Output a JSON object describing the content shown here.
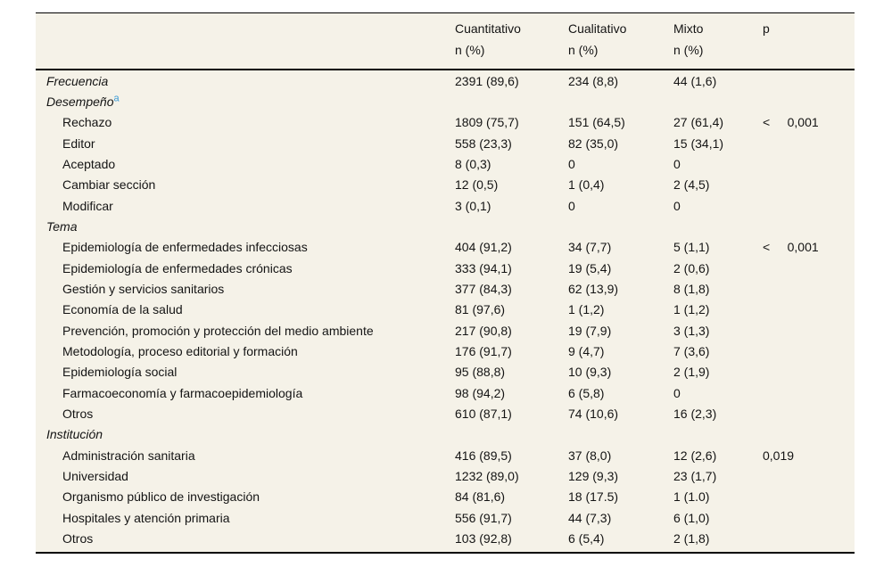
{
  "colors": {
    "page_background": "#ffffff",
    "table_background": "#f5f2e8",
    "text": "#141414",
    "rule": "#000000",
    "footnote_link": "#3c9bd5"
  },
  "table": {
    "columns": [
      {
        "label": "",
        "sub": ""
      },
      {
        "label": "Cuantitativo",
        "sub": "n (%)"
      },
      {
        "label": "Cualitativo",
        "sub": "n (%)"
      },
      {
        "label": "Mixto",
        "sub": "n (%)"
      },
      {
        "label": "p",
        "sub": ""
      }
    ],
    "rows": [
      {
        "label": "Frecuencia",
        "italic": true,
        "indent": false,
        "superscript": "",
        "cuantitativo": "2391 (89,6)",
        "cualitativo": "234 (8,8)",
        "mixto": "44 (1,6)",
        "p": ""
      },
      {
        "label": "Desempeño",
        "italic": true,
        "indent": false,
        "superscript": "a",
        "cuantitativo": "",
        "cualitativo": "",
        "mixto": "",
        "p": ""
      },
      {
        "label": "Rechazo",
        "italic": false,
        "indent": true,
        "superscript": "",
        "cuantitativo": "1809 (75,7)",
        "cualitativo": "151 (64,5)",
        "mixto": "27 (61,4)",
        "p": "<     0,001"
      },
      {
        "label": "Editor",
        "italic": false,
        "indent": true,
        "superscript": "",
        "cuantitativo": "558 (23,3)",
        "cualitativo": "82 (35,0)",
        "mixto": "15 (34,1)",
        "p": ""
      },
      {
        "label": "Aceptado",
        "italic": false,
        "indent": true,
        "superscript": "",
        "cuantitativo": "8 (0,3)",
        "cualitativo": "0",
        "mixto": "0",
        "p": ""
      },
      {
        "label": "Cambiar sección",
        "italic": false,
        "indent": true,
        "superscript": "",
        "cuantitativo": "12 (0,5)",
        "cualitativo": "1 (0,4)",
        "mixto": "2 (4,5)",
        "p": ""
      },
      {
        "label": "Modificar",
        "italic": false,
        "indent": true,
        "superscript": "",
        "cuantitativo": "3 (0,1)",
        "cualitativo": "0",
        "mixto": "0",
        "p": ""
      },
      {
        "label": "Tema",
        "italic": true,
        "indent": false,
        "superscript": "",
        "cuantitativo": "",
        "cualitativo": "",
        "mixto": "",
        "p": ""
      },
      {
        "label": "Epidemiología de enfermedades infecciosas",
        "italic": false,
        "indent": true,
        "superscript": "",
        "cuantitativo": "404 (91,2)",
        "cualitativo": "34 (7,7)",
        "mixto": "5 (1,1)",
        "p": "<     0,001"
      },
      {
        "label": "Epidemiología de enfermedades crónicas",
        "italic": false,
        "indent": true,
        "superscript": "",
        "cuantitativo": "333 (94,1)",
        "cualitativo": "19 (5,4)",
        "mixto": "2 (0,6)",
        "p": ""
      },
      {
        "label": "Gestión y servicios sanitarios",
        "italic": false,
        "indent": true,
        "superscript": "",
        "cuantitativo": "377 (84,3)",
        "cualitativo": "62 (13,9)",
        "mixto": "8 (1,8)",
        "p": ""
      },
      {
        "label": "Economía de la salud",
        "italic": false,
        "indent": true,
        "superscript": "",
        "cuantitativo": "81 (97,6)",
        "cualitativo": "1 (1,2)",
        "mixto": "1 (1,2)",
        "p": ""
      },
      {
        "label": "Prevención, promoción y protección del medio ambiente",
        "italic": false,
        "indent": true,
        "superscript": "",
        "cuantitativo": "217 (90,8)",
        "cualitativo": "19 (7,9)",
        "mixto": "3 (1,3)",
        "p": ""
      },
      {
        "label": "Metodología, proceso editorial y formación",
        "italic": false,
        "indent": true,
        "superscript": "",
        "cuantitativo": "176 (91,7)",
        "cualitativo": "9 (4,7)",
        "mixto": "7 (3,6)",
        "p": ""
      },
      {
        "label": "Epidemiología social",
        "italic": false,
        "indent": true,
        "superscript": "",
        "cuantitativo": "95 (88,8)",
        "cualitativo": "10 (9,3)",
        "mixto": "2 (1,9)",
        "p": ""
      },
      {
        "label": "Farmacoeconomía y farmacoepidemiología",
        "italic": false,
        "indent": true,
        "superscript": "",
        "cuantitativo": "98 (94,2)",
        "cualitativo": "6 (5,8)",
        "mixto": "0",
        "p": ""
      },
      {
        "label": "Otros",
        "italic": false,
        "indent": true,
        "superscript": "",
        "cuantitativo": "610 (87,1)",
        "cualitativo": "74 (10,6)",
        "mixto": "16 (2,3)",
        "p": ""
      },
      {
        "label": "Institución",
        "italic": true,
        "indent": false,
        "superscript": "",
        "cuantitativo": "",
        "cualitativo": "",
        "mixto": "",
        "p": ""
      },
      {
        "label": "Administración sanitaria",
        "italic": false,
        "indent": true,
        "superscript": "",
        "cuantitativo": "416 (89,5)",
        "cualitativo": "37 (8,0)",
        "mixto": "12 (2,6)",
        "p": "0,019"
      },
      {
        "label": "Universidad",
        "italic": false,
        "indent": true,
        "superscript": "",
        "cuantitativo": "1232 (89,0)",
        "cualitativo": "129 (9,3)",
        "mixto": "23 (1,7)",
        "p": ""
      },
      {
        "label": "Organismo público de investigación",
        "italic": false,
        "indent": true,
        "superscript": "",
        "cuantitativo": "84 (81,6)",
        "cualitativo": "18 (17.5)",
        "mixto": "1 (1.0)",
        "p": ""
      },
      {
        "label": "Hospitales y atención primaria",
        "italic": false,
        "indent": true,
        "superscript": "",
        "cuantitativo": "556 (91,7)",
        "cualitativo": "44 (7,3)",
        "mixto": "6 (1,0)",
        "p": ""
      },
      {
        "label": "Otros",
        "italic": false,
        "indent": true,
        "superscript": "",
        "cuantitativo": "103 (92,8)",
        "cualitativo": "6 (5,4)",
        "mixto": "2 (1,8)",
        "p": ""
      }
    ]
  }
}
